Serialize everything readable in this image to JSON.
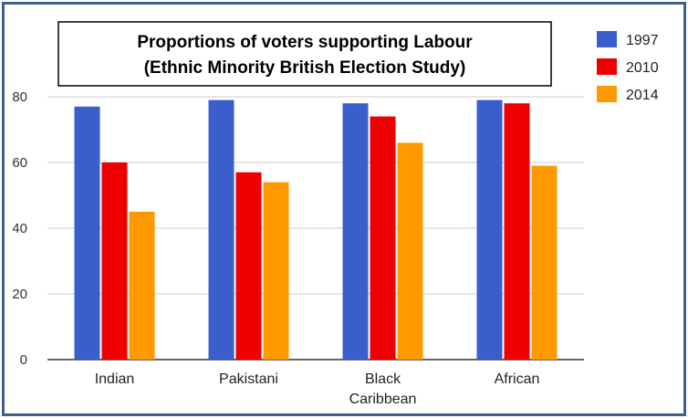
{
  "chart_data": {
    "type": "bar",
    "title_lines": [
      "Proportions  of voters supporting Labour",
      "(Ethnic Minority British Election Study)"
    ],
    "categories": [
      [
        "Indian"
      ],
      [
        "Pakistani"
      ],
      [
        "Black",
        "Caribbean"
      ],
      [
        "African"
      ]
    ],
    "series": [
      {
        "name": "1997",
        "color": "#3a5fcd",
        "values": [
          77,
          79,
          78,
          79
        ]
      },
      {
        "name": "2010",
        "color": "#ee0000",
        "values": [
          60,
          57,
          74,
          78
        ]
      },
      {
        "name": "2014",
        "color": "#ff9900",
        "values": [
          45,
          54,
          66,
          59
        ]
      }
    ],
    "ylim": [
      0,
      80
    ],
    "yticks": [
      0,
      20,
      40,
      60,
      80
    ],
    "grid": true,
    "legend_position": "right"
  }
}
